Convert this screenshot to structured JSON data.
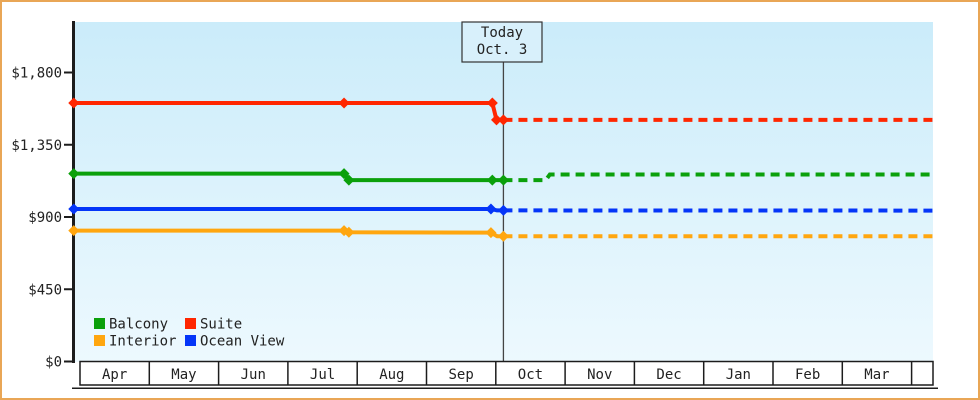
{
  "window": {
    "page_bg": "#ffffff",
    "border_color": "#e9a656"
  },
  "chart_data": {
    "type": "line",
    "title": "",
    "description": "Cruise cabin price history by category with dashed projection after today",
    "today_label": {
      "line1": "Today",
      "line2": "Oct. 3"
    },
    "today_x": 6.11,
    "x_categories": [
      "Apr",
      "May",
      "Jun",
      "Jul",
      "Aug",
      "Sep",
      "Oct",
      "Nov",
      "Dec",
      "Jan",
      "Feb",
      "Mar"
    ],
    "xlim_months": [
      -0.09,
      12.31
    ],
    "ylim": [
      0,
      2114
    ],
    "y_ticks": [
      {
        "value": 0,
        "label": "$0"
      },
      {
        "value": 450,
        "label": "$450"
      },
      {
        "value": 900,
        "label": "$900"
      },
      {
        "value": 1350,
        "label": "$1,350"
      },
      {
        "value": 1800,
        "label": "$1,800"
      }
    ],
    "grid": false,
    "legend_position": "bottom-left-inside",
    "legend_rows": [
      [
        "Balcony",
        "Suite"
      ],
      [
        "Interior",
        "Ocean View"
      ]
    ],
    "plot_bg_top": "#cbecfa",
    "plot_bg_bottom": "#edf9fe",
    "today_box_fill": "#d8f0fb",
    "axis_color": "#1c1c1c",
    "today_line_color": "#444444",
    "month_band_fill": "#ffffff",
    "series": [
      {
        "name": "Balcony",
        "color": "#0ba00b",
        "marker": "diamond",
        "current_value": 1130,
        "history": [
          {
            "x": -0.09,
            "y": 1170,
            "m": true
          },
          {
            "x": 3.81,
            "y": 1170,
            "m": true
          },
          {
            "x": 3.88,
            "y": 1130,
            "m": true
          },
          {
            "x": 5.95,
            "y": 1130,
            "m": true
          },
          {
            "x": 6.11,
            "y": 1130,
            "m": true
          }
        ],
        "forecast": [
          {
            "x": 6.11,
            "y": 1130
          },
          {
            "x": 6.72,
            "y": 1130
          },
          {
            "x": 6.78,
            "y": 1165
          },
          {
            "x": 12.31,
            "y": 1165
          }
        ]
      },
      {
        "name": "Suite",
        "color": "#ff2600",
        "marker": "diamond",
        "current_value": 1505,
        "history": [
          {
            "x": -0.09,
            "y": 1610,
            "m": true
          },
          {
            "x": 3.81,
            "y": 1610,
            "m": true
          },
          {
            "x": 5.95,
            "y": 1610,
            "m": true
          },
          {
            "x": 6.01,
            "y": 1505,
            "m": true
          },
          {
            "x": 6.11,
            "y": 1505,
            "m": true
          }
        ],
        "forecast": [
          {
            "x": 6.11,
            "y": 1505
          },
          {
            "x": 12.31,
            "y": 1505
          }
        ]
      },
      {
        "name": "Interior",
        "color": "#ffa60f",
        "marker": "diamond",
        "current_value": 780,
        "history": [
          {
            "x": -0.09,
            "y": 815,
            "m": true
          },
          {
            "x": 3.81,
            "y": 815,
            "m": true
          },
          {
            "x": 3.88,
            "y": 805,
            "m": true
          },
          {
            "x": 5.93,
            "y": 803,
            "m": true
          },
          {
            "x": 6.02,
            "y": 780,
            "m": false
          },
          {
            "x": 6.11,
            "y": 780,
            "m": true
          }
        ],
        "forecast": [
          {
            "x": 6.11,
            "y": 780
          },
          {
            "x": 12.31,
            "y": 780
          }
        ]
      },
      {
        "name": "Ocean View",
        "color": "#0435f8",
        "marker": "diamond",
        "current_value": 941,
        "history": [
          {
            "x": -0.09,
            "y": 950,
            "m": true
          },
          {
            "x": 5.93,
            "y": 950,
            "m": true
          },
          {
            "x": 6.02,
            "y": 941,
            "m": false
          },
          {
            "x": 6.11,
            "y": 941,
            "m": true
          }
        ],
        "forecast": [
          {
            "x": 6.11,
            "y": 941
          },
          {
            "x": 12.31,
            "y": 940
          }
        ]
      }
    ]
  }
}
